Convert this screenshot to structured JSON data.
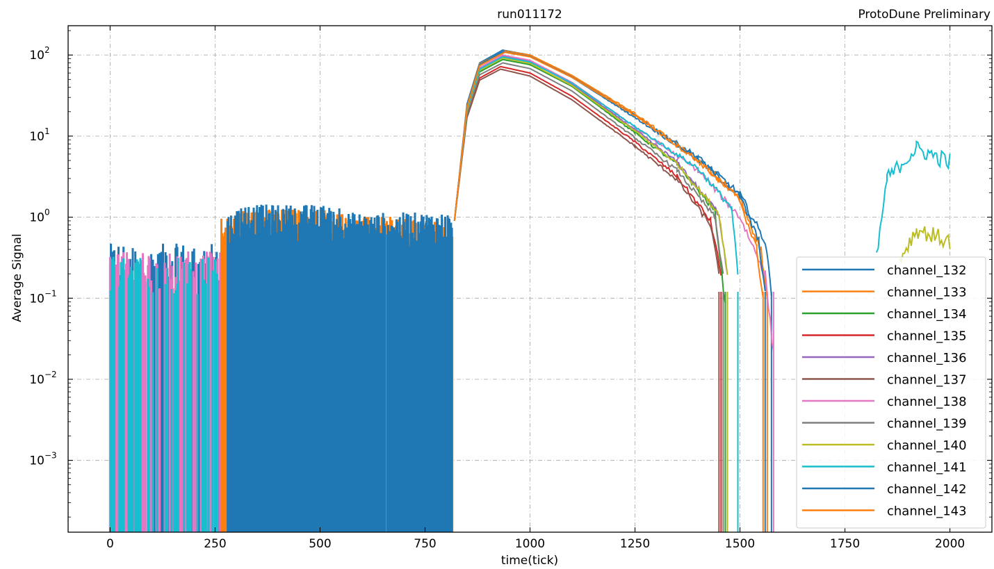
{
  "chart_data": {
    "type": "line",
    "title": "run011172",
    "title_right": "ProtoDune Preliminary",
    "xlabel": "time(tick)",
    "ylabel": "Average Signal",
    "xlim": [
      -100,
      2100
    ],
    "ylim": [
      0.00013,
      230
    ],
    "yscale": "log",
    "grid": true,
    "legend_position": "lower-right",
    "x_ticks": [
      "0",
      "250",
      "500",
      "750",
      "1000",
      "1250",
      "1500",
      "1750",
      "2000"
    ],
    "x_tick_values": [
      0,
      250,
      500,
      750,
      1000,
      1250,
      1500,
      1750,
      2000
    ],
    "y_ticks": [
      {
        "base": "10",
        "exp": "2",
        "value": 100
      },
      {
        "base": "10",
        "exp": "1",
        "value": 10
      },
      {
        "base": "10",
        "exp": "0",
        "value": 1
      },
      {
        "base": "10",
        "exp": "−1",
        "value": 0.1
      },
      {
        "base": "10",
        "exp": "−2",
        "value": 0.01
      },
      {
        "base": "10",
        "exp": "−3",
        "value": 0.001
      }
    ],
    "series": [
      {
        "name": "channel_132",
        "color": "#1f77b4",
        "peak": 115,
        "peak_x": 935,
        "tail": 2.6,
        "end_x": 1575,
        "x": [
          0,
          820,
          850,
          880,
          935,
          1000,
          1100,
          1250,
          1400,
          1500,
          1560,
          1575
        ],
        "values": [
          0.3,
          0.9,
          25,
          80,
          115,
          100,
          55,
          18,
          5.5,
          1.9,
          0.5,
          0.12
        ]
      },
      {
        "name": "channel_133",
        "color": "#ff7f0e",
        "peak": 112,
        "peak_x": 940,
        "tail": 2.7,
        "end_x": 1565,
        "x": [
          270,
          820,
          850,
          880,
          940,
          1000,
          1100,
          1250,
          1400,
          1500,
          1550,
          1565
        ],
        "values": [
          0.5,
          0.9,
          24,
          78,
          112,
          100,
          56,
          19,
          5.0,
          1.7,
          0.4,
          0.1
        ]
      },
      {
        "name": "channel_134",
        "color": "#2ca02c",
        "peak": 88,
        "peak_x": 935,
        "tail": 2.4,
        "end_x": 1465,
        "x": [
          820,
          850,
          880,
          935,
          1000,
          1100,
          1250,
          1350,
          1440,
          1465
        ],
        "values": [
          0.9,
          20,
          62,
          88,
          76,
          41,
          11,
          4.5,
          1.2,
          0.08
        ]
      },
      {
        "name": "channel_135",
        "color": "#d62728",
        "peak": 72,
        "peak_x": 930,
        "tail": 2.3,
        "end_x": 1455,
        "x": [
          820,
          850,
          880,
          930,
          1000,
          1100,
          1250,
          1350,
          1430,
          1455
        ],
        "values": [
          0.9,
          18,
          52,
          72,
          60,
          31,
          8.5,
          3.2,
          0.9,
          0.2
        ]
      },
      {
        "name": "channel_136",
        "color": "#9467bd",
        "peak": 98,
        "peak_x": 935,
        "tail": 2.4,
        "end_x": 1470,
        "x": [
          820,
          850,
          880,
          935,
          1000,
          1100,
          1250,
          1350,
          1450,
          1470
        ],
        "values": [
          0.9,
          22,
          68,
          98,
          84,
          44,
          12,
          4.8,
          1.1,
          0.2
        ]
      },
      {
        "name": "channel_137",
        "color": "#8c564b",
        "peak": 67,
        "peak_x": 930,
        "tail": 2.3,
        "end_x": 1450,
        "x": [
          820,
          850,
          880,
          930,
          1000,
          1100,
          1250,
          1350,
          1430,
          1450
        ],
        "values": [
          0.9,
          17,
          49,
          67,
          55,
          28,
          7.5,
          2.9,
          0.8,
          0.2
        ]
      },
      {
        "name": "channel_138",
        "color": "#e377c2",
        "peak": 100,
        "peak_x": 935,
        "tail": 2.5,
        "end_x": 1580,
        "x": [
          0,
          820,
          850,
          880,
          935,
          1000,
          1100,
          1250,
          1400,
          1500,
          1560,
          1580
        ],
        "values": [
          0.3,
          0.9,
          23,
          70,
          100,
          86,
          46,
          13,
          3.8,
          1.0,
          0.2,
          0.02
        ]
      },
      {
        "name": "channel_139",
        "color": "#7f7f7f",
        "peak": 80,
        "peak_x": 935,
        "tail": 2.4,
        "end_x": 1460,
        "x": [
          820,
          850,
          880,
          935,
          1000,
          1100,
          1250,
          1350,
          1440,
          1460
        ],
        "values": [
          0.9,
          19,
          57,
          80,
          68,
          36,
          9.5,
          3.8,
          1.0,
          0.2
        ]
      },
      {
        "name": "channel_140",
        "color": "#bcbd22",
        "peak": 92,
        "peak_x": 935,
        "tail": 2.5,
        "end_x": 1470,
        "x": [
          820,
          850,
          880,
          935,
          1000,
          1100,
          1250,
          1350,
          1450,
          1470,
          1880,
          1920,
          2000
        ],
        "values": [
          0.9,
          21,
          65,
          92,
          79,
          42,
          11.5,
          4.6,
          1.1,
          0.2,
          0.3,
          0.7,
          0.5
        ]
      },
      {
        "name": "channel_141",
        "color": "#17becf",
        "peak": 95,
        "peak_x": 935,
        "tail": 2.5,
        "end_x": 1495,
        "x": [
          250,
          820,
          850,
          880,
          935,
          1000,
          1100,
          1250,
          1400,
          1480,
          1495,
          1825,
          1850,
          1920,
          2000
        ],
        "values": [
          0.3,
          0.9,
          22,
          67,
          95,
          82,
          45,
          13,
          4.0,
          1.3,
          0.2,
          0.3,
          3.0,
          7.0,
          4.8
        ]
      },
      {
        "name": "channel_142",
        "color": "#1f77b4",
        "peak": 110,
        "peak_x": 935,
        "tail": 2.6,
        "end_x": 1560,
        "x": [
          0,
          820,
          850,
          880,
          935,
          1000,
          1100,
          1250,
          1400,
          1500,
          1545,
          1560
        ],
        "values": [
          0.2,
          0.9,
          24,
          76,
          110,
          96,
          53,
          17,
          5.2,
          1.8,
          0.5,
          0.12
        ]
      },
      {
        "name": "channel_143",
        "color": "#ff7f0e",
        "peak": 108,
        "peak_x": 940,
        "tail": 2.6,
        "end_x": 1555,
        "x": [
          280,
          820,
          850,
          880,
          940,
          1000,
          1100,
          1250,
          1400,
          1500,
          1540,
          1555
        ],
        "values": [
          0.4,
          0.9,
          23,
          74,
          108,
          95,
          53,
          18,
          5.0,
          1.6,
          0.4,
          0.1
        ]
      }
    ]
  }
}
